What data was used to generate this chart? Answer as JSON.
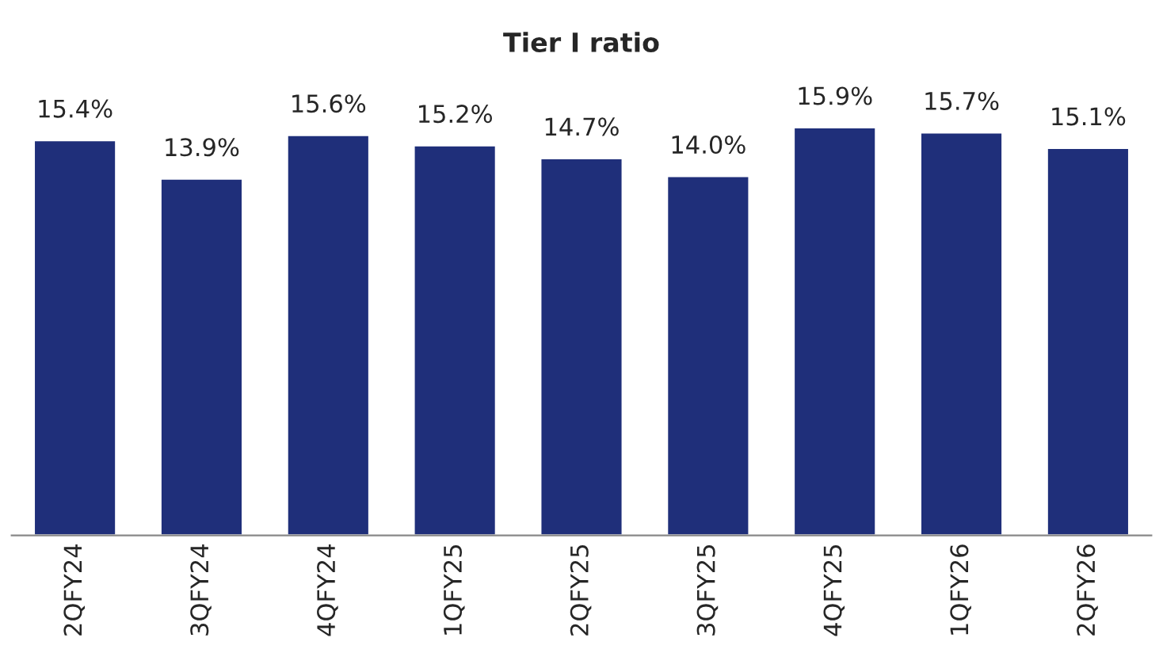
{
  "chart_data": {
    "type": "bar",
    "title": "Tier I ratio",
    "categories": [
      "2QFY24",
      "3QFY24",
      "4QFY24",
      "1QFY25",
      "2QFY25",
      "3QFY25",
      "4QFY25",
      "1QFY26",
      "2QFY26"
    ],
    "values": [
      15.4,
      13.9,
      15.6,
      15.2,
      14.7,
      14.0,
      15.9,
      15.7,
      15.1
    ],
    "value_labels": [
      "15.4%",
      "13.9%",
      "15.6%",
      "15.2%",
      "14.7%",
      "14.0%",
      "15.9%",
      "15.7%",
      "15.1%"
    ],
    "color": "#1f2f7a",
    "tick_labels": "x",
    "grid": false,
    "legend": false
  }
}
